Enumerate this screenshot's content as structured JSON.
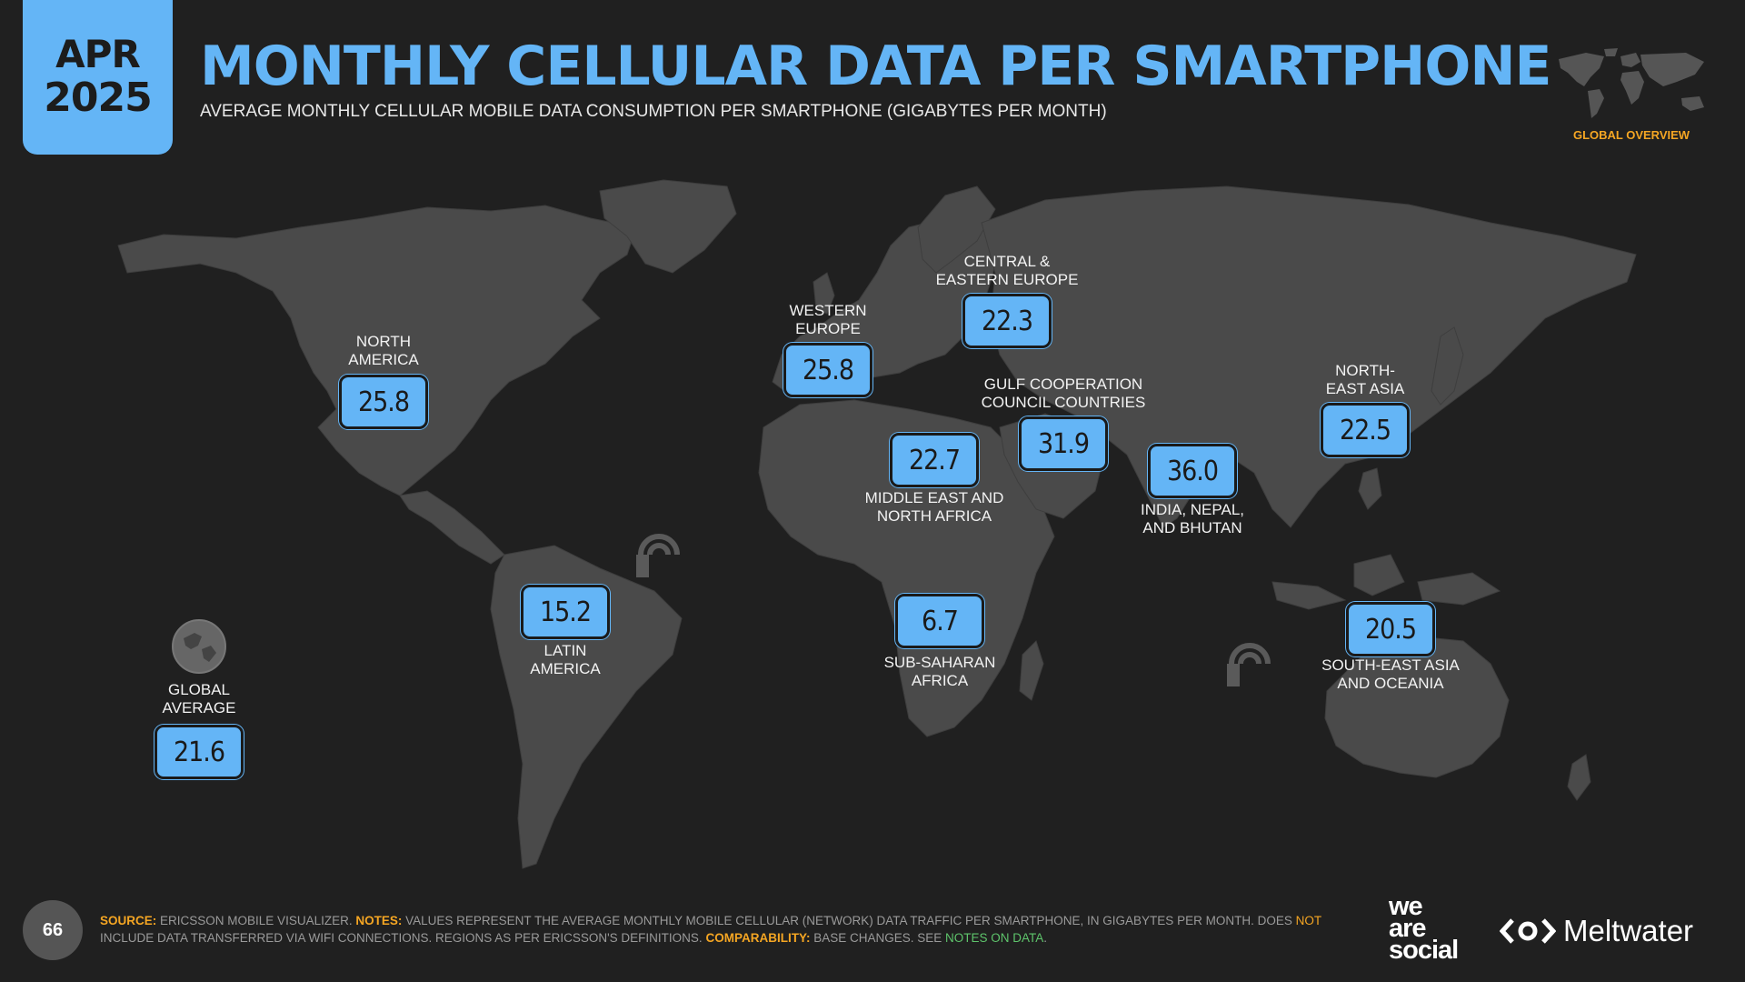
{
  "header": {
    "month": "APR",
    "year": "2025",
    "title": "MONTHLY CELLULAR DATA PER SMARTPHONE",
    "subtitle": "AVERAGE MONTHLY CELLULAR MOBILE DATA CONSUMPTION PER SMARTPHONE (GIGABYTES PER MONTH)",
    "section_label": "GLOBAL OVERVIEW"
  },
  "regions": [
    {
      "id": "north-america",
      "label_1": "NORTH",
      "label_2": "AMERICA",
      "value": "25.8"
    },
    {
      "id": "western-europe",
      "label_1": "WESTERN",
      "label_2": "EUROPE",
      "value": "25.8"
    },
    {
      "id": "central-eastern-europe",
      "label_1": "CENTRAL &",
      "label_2": "EASTERN EUROPE",
      "value": "22.3"
    },
    {
      "id": "gulf-cooperation",
      "label_1": "GULF COOPERATION",
      "label_2": "COUNCIL COUNTRIES",
      "value": "31.9"
    },
    {
      "id": "north-east-asia",
      "label_1": "NORTH-",
      "label_2": "EAST ASIA",
      "value": "22.5"
    },
    {
      "id": "middle-east-north-africa",
      "label_1": "MIDDLE EAST AND",
      "label_2": "NORTH AFRICA",
      "value": "22.7"
    },
    {
      "id": "india-nepal-bhutan",
      "label_1": "INDIA, NEPAL,",
      "label_2": "AND BHUTAN",
      "value": "36.0"
    },
    {
      "id": "latin-america",
      "label_1": "LATIN",
      "label_2": "AMERICA",
      "value": "15.2"
    },
    {
      "id": "sub-saharan-africa",
      "label_1": "SUB-SAHARAN",
      "label_2": "AFRICA",
      "value": "6.7"
    },
    {
      "id": "south-east-asia-oceania",
      "label_1": "SOUTH-EAST ASIA",
      "label_2": "AND OCEANIA",
      "value": "20.5"
    }
  ],
  "global": {
    "label_1": "GLOBAL",
    "label_2": "AVERAGE",
    "value": "21.6"
  },
  "footer": {
    "page_number": "66",
    "source_key": "SOURCE:",
    "source_text": "ERICSSON MOBILE VISUALIZER.",
    "notes_key": "NOTES:",
    "notes_text_1": "VALUES REPRESENT THE AVERAGE MONTHLY MOBILE CELLULAR (NETWORK) DATA TRAFFIC PER SMARTPHONE, IN GIGABYTES PER MONTH. DOES",
    "notes_not": "NOT",
    "notes_text_2": "INCLUDE DATA TRANSFERRED VIA WIFI CONNECTIONS. REGIONS AS PER ERICSSON'S DEFINITIONS.",
    "comparability_key": "COMPARABILITY:",
    "comparability_text": "BASE CHANGES. SEE",
    "notes_link": "NOTES ON DATA",
    "end": ".",
    "brand_1_line_1": "we",
    "brand_1_line_2": "are",
    "brand_1_line_3": "social",
    "brand_2": "Meltwater"
  },
  "colors": {
    "accent": "#64b5f6",
    "background": "#202020",
    "land": "#4a4a4a",
    "highlight": "#f5a623",
    "link": "#5ec46b"
  }
}
